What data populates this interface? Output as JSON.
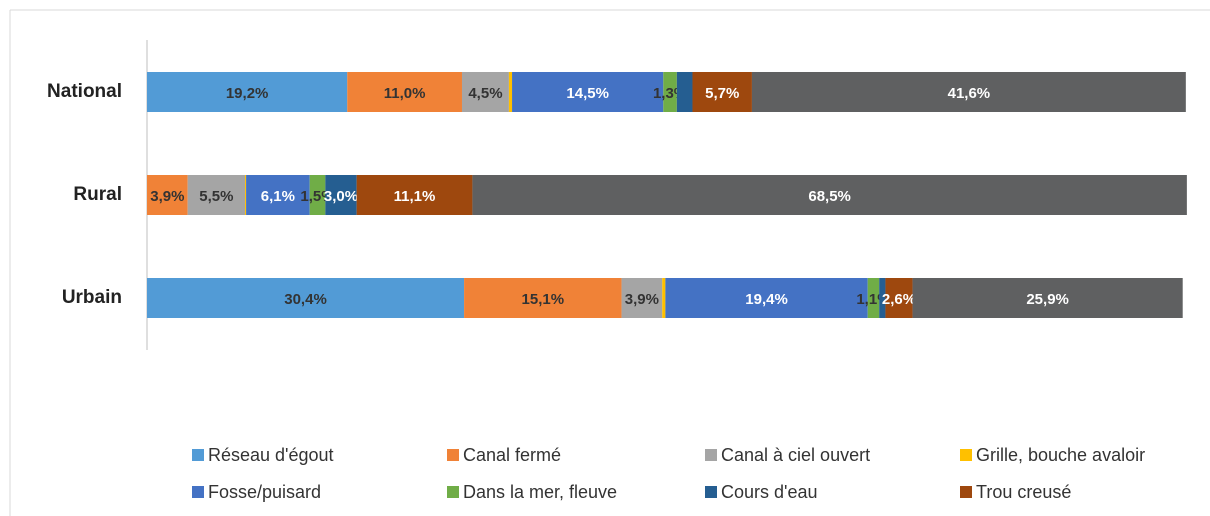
{
  "chart_data": {
    "type": "stacked_barh",
    "categories": [
      "National",
      "Rural",
      "Urbain"
    ],
    "xlim": [
      0,
      100
    ],
    "series": [
      {
        "name": "Réseau d'égout",
        "color": "#529bd6",
        "values": [
          19.2,
          0,
          30.4
        ],
        "value_labels": [
          "19,2%",
          null,
          "30,4%"
        ]
      },
      {
        "name": "Canal fermé",
        "color": "#f08237",
        "values": [
          11.0,
          3.9,
          15.1
        ],
        "value_labels": [
          "11,0%",
          "3,9%",
          "15,1%"
        ]
      },
      {
        "name": "Canal à ciel ouvert",
        "color": "#a5a5a5",
        "values": [
          4.5,
          5.5,
          3.9
        ],
        "value_labels": [
          "4,5%",
          "5,5%",
          "3,9%"
        ]
      },
      {
        "name": "Grille, bouche avaloir",
        "color": "#ffc000",
        "values": [
          0.3,
          0.1,
          0.3
        ],
        "value_labels": [
          null,
          null,
          null
        ]
      },
      {
        "name": "Fosse/puisard",
        "color": "#4472c4",
        "values": [
          14.5,
          6.1,
          19.4
        ],
        "value_labels": [
          "14,5%",
          "6,1%",
          "19,4%"
        ]
      },
      {
        "name": "Dans la mer, fleuve",
        "color": "#70ad47",
        "values": [
          1.3,
          1.5,
          1.1
        ],
        "value_labels": [
          "1,3%",
          "1,5%",
          "1,1%"
        ]
      },
      {
        "name": "Cours d'eau",
        "color": "#255e91",
        "values": [
          1.5,
          3.0,
          0.6
        ],
        "value_labels": [
          null,
          "3,0%",
          null
        ]
      },
      {
        "name": "Trou creusé",
        "color": "#9e480e",
        "values": [
          5.7,
          11.1,
          2.6
        ],
        "value_labels": [
          "5,7%",
          "11,1%",
          "2,6%"
        ]
      },
      {
        "name": null,
        "color": "#5f6061",
        "values": [
          41.6,
          68.5,
          25.9
        ],
        "value_labels": [
          "41,6%",
          "68,5%",
          "25,9%"
        ]
      }
    ]
  }
}
